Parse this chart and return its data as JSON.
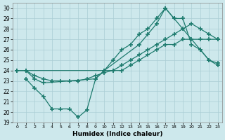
{
  "background_color": "#cde8ec",
  "grid_color": "#aacdd4",
  "line_color": "#1e7b6e",
  "xlabel": "Humidex (Indice chaleur)",
  "xlim": [
    -0.5,
    23.5
  ],
  "ylim": [
    19,
    30.5
  ],
  "yticks": [
    19,
    20,
    21,
    22,
    23,
    24,
    25,
    26,
    27,
    28,
    29,
    30
  ],
  "xticks": [
    0,
    1,
    2,
    3,
    4,
    5,
    6,
    7,
    8,
    9,
    10,
    11,
    12,
    13,
    14,
    15,
    16,
    17,
    18,
    19,
    20,
    21,
    22,
    23
  ],
  "line1_x": [
    0,
    1,
    10,
    14,
    15,
    16,
    17,
    18,
    21,
    22,
    23
  ],
  "line1_y": [
    24,
    24,
    24,
    26.5,
    27.5,
    28.5,
    30,
    29,
    26,
    25,
    24.5
  ],
  "line2_x": [
    0,
    1,
    2,
    3,
    9,
    10,
    11,
    12,
    13,
    14,
    15,
    16,
    17,
    18,
    19,
    20,
    21,
    22,
    23
  ],
  "line2_y": [
    24,
    24,
    23.2,
    22.8,
    23.2,
    24,
    25,
    26,
    26.5,
    27.5,
    28,
    29,
    30,
    29,
    29,
    26.5,
    26,
    25,
    24.7
  ],
  "line3_x": [
    1,
    2,
    3,
    4,
    5,
    6,
    7,
    8,
    9,
    10,
    11,
    12,
    13,
    14,
    15,
    16,
    17,
    18,
    19,
    20,
    21,
    22,
    23
  ],
  "line3_y": [
    23.2,
    22.3,
    21.5,
    20.3,
    20.3,
    20.3,
    19.5,
    20.2,
    23.2,
    24,
    24,
    24,
    24.5,
    25,
    25.5,
    26,
    26.5,
    26.5,
    27,
    27,
    27,
    27,
    27
  ],
  "line4_x": [
    0,
    1,
    2,
    3,
    4,
    5,
    6,
    7,
    8,
    9,
    10,
    11,
    12,
    13,
    14,
    15,
    16,
    17,
    18,
    19,
    20,
    21,
    22,
    23
  ],
  "line4_y": [
    24,
    24,
    23.5,
    23.2,
    23,
    23,
    23,
    23,
    23.2,
    23.5,
    23.8,
    24,
    24.5,
    25,
    25.5,
    26,
    26.5,
    27,
    27.5,
    28,
    28.5,
    28,
    27.5,
    27
  ]
}
